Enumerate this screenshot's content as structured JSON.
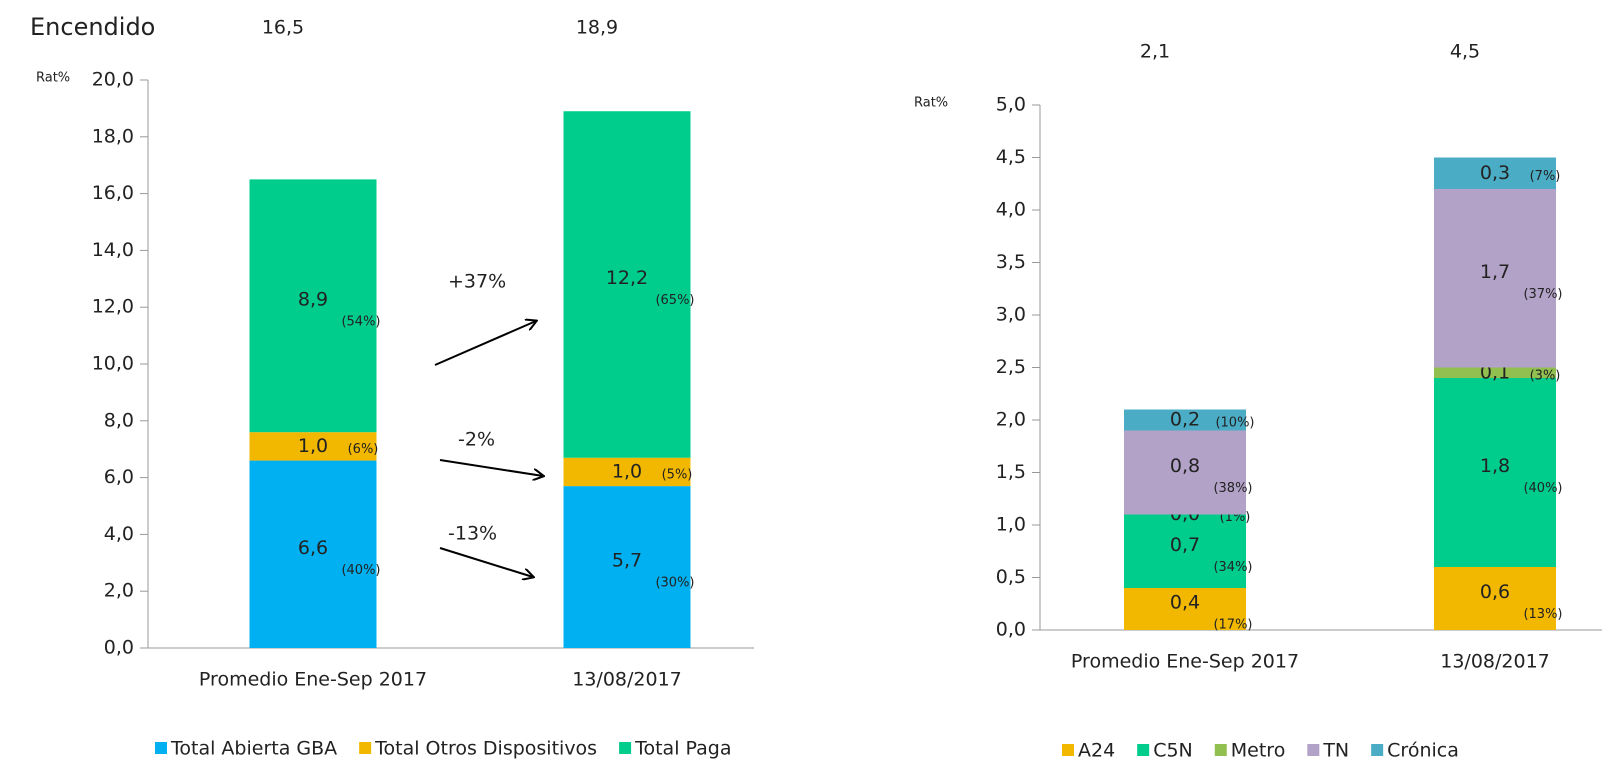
{
  "chart_data": [
    {
      "type": "stacked_bar",
      "title": "Encendido",
      "y_label": "Rat%",
      "categories": [
        "Promedio Ene-Sep 2017",
        "13/08/2017"
      ],
      "totals": [
        16.5,
        18.9
      ],
      "total_labels": [
        "16,5",
        "18,9"
      ],
      "ylim": [
        0,
        20
      ],
      "yticks": [
        {
          "value": 0,
          "label": "0,0"
        },
        {
          "value": 2,
          "label": "2,0"
        },
        {
          "value": 4,
          "label": "4,0"
        },
        {
          "value": 6,
          "label": "6,0"
        },
        {
          "value": 8,
          "label": "8,0"
        },
        {
          "value": 10,
          "label": "10,0"
        },
        {
          "value": 12,
          "label": "12,0"
        },
        {
          "value": 14,
          "label": "14,0"
        },
        {
          "value": 16,
          "label": "16,0"
        },
        {
          "value": 18,
          "label": "18,0"
        },
        {
          "value": 20,
          "label": "20,0"
        }
      ],
      "series": [
        {
          "name": "Total Abierta GBA",
          "color": "#00b0f0",
          "values": [
            6.6,
            5.7
          ],
          "value_labels": [
            "6,6",
            "5,7"
          ],
          "share_labels": [
            "(40%)",
            "(30%)"
          ]
        },
        {
          "name": "Total Otros Dispositivos",
          "color": "#f2b800",
          "values": [
            1.0,
            1.0
          ],
          "value_labels": [
            "1,0",
            "1,0"
          ],
          "share_labels": [
            "(6%)",
            "(5%)"
          ]
        },
        {
          "name": "Total Paga",
          "color": "#00cc8c",
          "values": [
            8.9,
            12.2
          ],
          "value_labels": [
            "8,9",
            "12,2"
          ],
          "share_labels": [
            "(54%)",
            "(65%)"
          ]
        }
      ],
      "changes": [
        {
          "value": 37,
          "label": "+37%"
        },
        {
          "value": -2,
          "label": "-2%"
        },
        {
          "value": -13,
          "label": "-13%"
        }
      ],
      "legend": "bottom"
    },
    {
      "type": "stacked_bar",
      "y_label": "Rat%",
      "categories": [
        "Promedio Ene-Sep 2017",
        "13/08/2017"
      ],
      "totals": [
        2.1,
        4.5
      ],
      "total_labels": [
        "2,1",
        "4,5"
      ],
      "ylim": [
        0,
        5
      ],
      "yticks": [
        {
          "value": 0,
          "label": "0,0"
        },
        {
          "value": 0.5,
          "label": "0,5"
        },
        {
          "value": 1,
          "label": "1,0"
        },
        {
          "value": 1.5,
          "label": "1,5"
        },
        {
          "value": 2,
          "label": "2,0"
        },
        {
          "value": 2.5,
          "label": "2,5"
        },
        {
          "value": 3,
          "label": "3,0"
        },
        {
          "value": 3.5,
          "label": "3,5"
        },
        {
          "value": 4,
          "label": "4,0"
        },
        {
          "value": 4.5,
          "label": "4,5"
        },
        {
          "value": 5,
          "label": "5,0"
        }
      ],
      "series": [
        {
          "name": "A24",
          "color": "#f2b800",
          "values": [
            0.4,
            0.6
          ],
          "value_labels": [
            "0,4",
            "0,6"
          ],
          "share_labels": [
            "(17%)",
            "(13%)"
          ]
        },
        {
          "name": "C5N",
          "color": "#00cc8c",
          "values": [
            0.7,
            1.8
          ],
          "value_labels": [
            "0,7",
            "1,8"
          ],
          "share_labels": [
            "(34%)",
            "(40%)"
          ]
        },
        {
          "name": "Metro",
          "color": "#92c050",
          "values": [
            0.0,
            0.1
          ],
          "value_labels": [
            "0,0",
            "0,1"
          ],
          "share_labels": [
            "(1%)",
            "(3%)"
          ]
        },
        {
          "name": "TN",
          "color": "#b3a2c7",
          "values": [
            0.8,
            1.7
          ],
          "value_labels": [
            "0,8",
            "1,7"
          ],
          "share_labels": [
            "(38%)",
            "(37%)"
          ]
        },
        {
          "name": "Crónica",
          "color": "#4bacc6",
          "values": [
            0.2,
            0.3
          ],
          "value_labels": [
            "0,2",
            "0,3"
          ],
          "share_labels": [
            "(10%)",
            "(7%)"
          ]
        }
      ],
      "legend": "bottom"
    }
  ]
}
